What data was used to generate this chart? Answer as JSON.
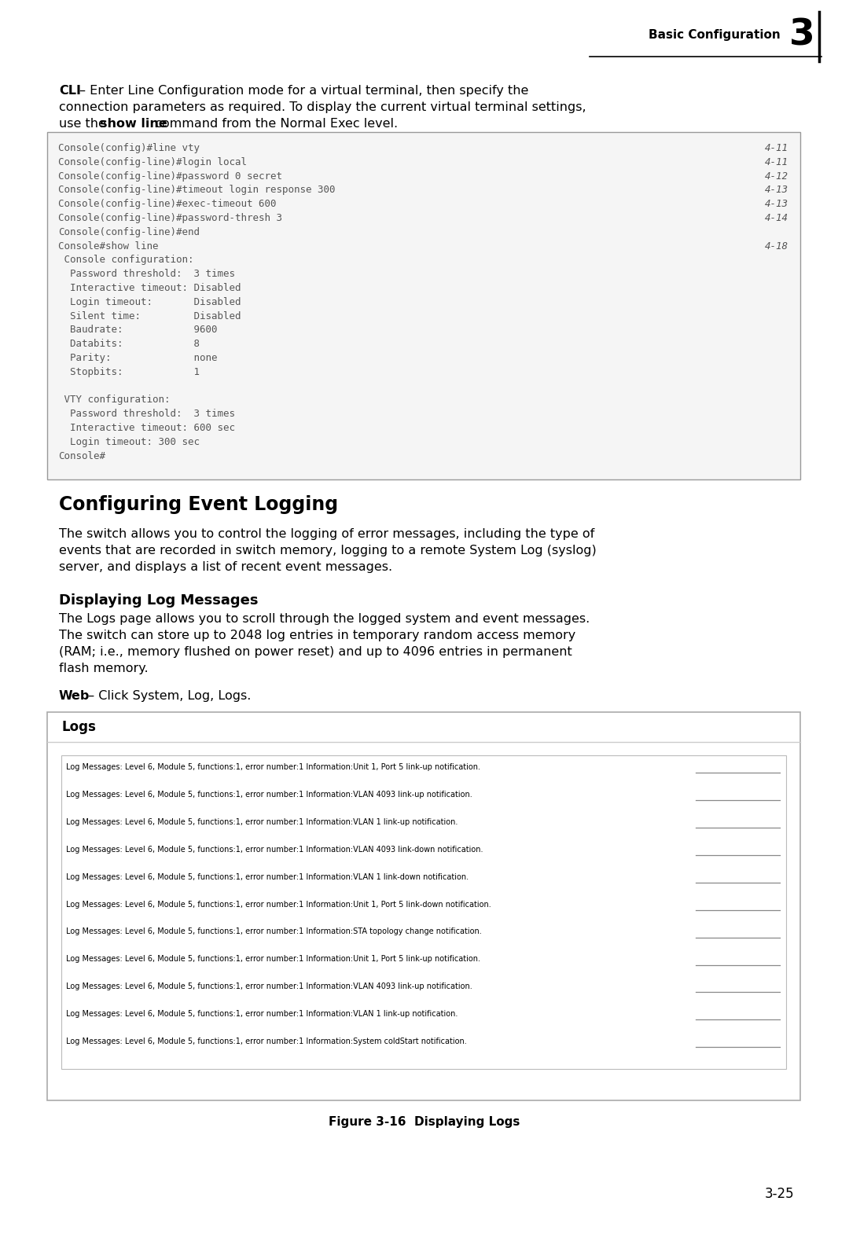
{
  "bg_color": "#ffffff",
  "header_text": "Basic Configuration",
  "header_number": "3",
  "code_lines": [
    [
      "Console(config)#line vty",
      "4-11"
    ],
    [
      "Console(config-line)#login local",
      "4-11"
    ],
    [
      "Console(config-line)#password 0 secret",
      "4-12"
    ],
    [
      "Console(config-line)#timeout login response 300",
      "4-13"
    ],
    [
      "Console(config-line)#exec-timeout 600",
      "4-13"
    ],
    [
      "Console(config-line)#password-thresh 3",
      "4-14"
    ],
    [
      "Console(config-line)#end",
      ""
    ],
    [
      "Console#show line",
      "4-18"
    ],
    [
      " Console configuration:",
      ""
    ],
    [
      "  Password threshold:  3 times",
      ""
    ],
    [
      "  Interactive timeout: Disabled",
      ""
    ],
    [
      "  Login timeout:       Disabled",
      ""
    ],
    [
      "  Silent time:         Disabled",
      ""
    ],
    [
      "  Baudrate:            9600",
      ""
    ],
    [
      "  Databits:            8",
      ""
    ],
    [
      "  Parity:              none",
      ""
    ],
    [
      "  Stopbits:            1",
      ""
    ],
    [
      "",
      ""
    ],
    [
      " VTY configuration:",
      ""
    ],
    [
      "  Password threshold:  3 times",
      ""
    ],
    [
      "  Interactive timeout: 600 sec",
      ""
    ],
    [
      "  Login timeout: 300 sec",
      ""
    ],
    [
      "Console#",
      ""
    ]
  ],
  "section_title": "Configuring Event Logging",
  "section_body_lines": [
    "The switch allows you to control the logging of error messages, including the type of",
    "events that are recorded in switch memory, logging to a remote System Log (syslog)",
    "server, and displays a list of recent event messages."
  ],
  "subsection_title": "Displaying Log Messages",
  "subsection_body_lines": [
    "The Logs page allows you to scroll through the logged system and event messages.",
    "The switch can store up to 2048 log entries in temporary random access memory",
    "(RAM; i.e., memory flushed on power reset) and up to 4096 entries in permanent",
    "flash memory."
  ],
  "web_bold": "Web",
  "web_rest": " – Click System, Log, Logs.",
  "logs_panel_title": "Logs",
  "log_entries": [
    "Log Messages: Level 6, Module 5, functions:1, error number:1 Information:Unit 1, Port 5 link-up notification.",
    "Log Messages: Level 6, Module 5, functions:1, error number:1 Information:VLAN 4093 link-up notification.",
    "Log Messages: Level 6, Module 5, functions:1, error number:1 Information:VLAN 1 link-up notification.",
    "Log Messages: Level 6, Module 5, functions:1, error number:1 Information:VLAN 4093 link-down notification.",
    "Log Messages: Level 6, Module 5, functions:1, error number:1 Information:VLAN 1 link-down notification.",
    "Log Messages: Level 6, Module 5, functions:1, error number:1 Information:Unit 1, Port 5 link-down notification.",
    "Log Messages: Level 6, Module 5, functions:1, error number:1 Information:STA topology change notification.",
    "Log Messages: Level 6, Module 5, functions:1, error number:1 Information:Unit 1, Port 5 link-up notification.",
    "Log Messages: Level 6, Module 5, functions:1, error number:1 Information:VLAN 4093 link-up notification.",
    "Log Messages: Level 6, Module 5, functions:1, error number:1 Information:VLAN 1 link-up notification.",
    "Log Messages: Level 6, Module 5, functions:1, error number:1 Information:System coldStart notification."
  ],
  "figure_caption": "Figure 3-16  Displaying Logs",
  "page_number": "3-25"
}
